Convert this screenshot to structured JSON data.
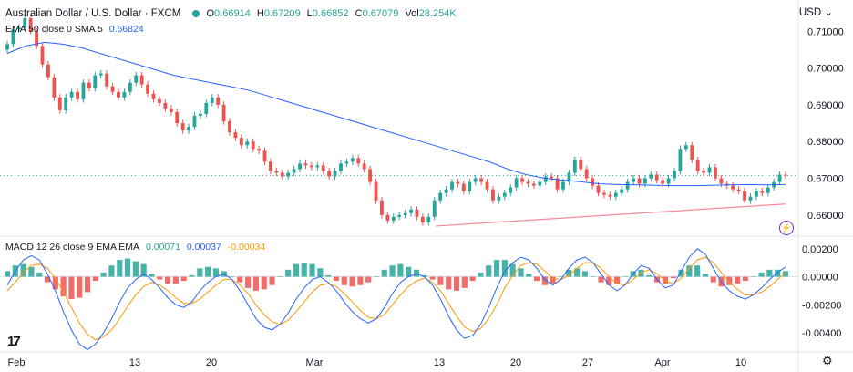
{
  "header": {
    "symbol_title": "Australian Dollar / U.S. Dollar · FXCM",
    "ohlc": [
      {
        "label": "O",
        "value": "0.66914"
      },
      {
        "label": "H",
        "value": "0.67209"
      },
      {
        "label": "L",
        "value": "0.66852"
      },
      {
        "label": "C",
        "value": "0.67079"
      },
      {
        "label": "Vol",
        "value": "28.254K"
      }
    ],
    "ema_label": "EMA 50 close 0 SMA 5",
    "ema_value": "0.66824",
    "currency": "USD",
    "macd_label": "MACD 12 26 close 9 EMA EMA",
    "macd_values": [
      "0.00071",
      "0.00037",
      "-0.00034"
    ]
  },
  "colors": {
    "up": "#26a69a",
    "down": "#ef5350",
    "ema": "#2962ff",
    "trendline": "#f28b9a",
    "macd_line": "#2962ff",
    "signal_line": "#ff9800",
    "hist_up": "#26a69a",
    "hist_down": "#ef5350"
  },
  "icons": {
    "logo": "tradingview-logo",
    "settings": "gear-icon",
    "flash": "lightning-icon"
  },
  "logo_text": "17",
  "chart_data": [
    {
      "type": "candlestick",
      "title": "Australian Dollar / U.S. Dollar · FXCM",
      "x_ticks": [
        "Feb",
        "13",
        "20",
        "Mar",
        "13",
        "20",
        "27",
        "Apr",
        "10"
      ],
      "y_ticks": [
        "0.71000",
        "0.70000",
        "0.69000",
        "0.68000",
        "0.67000",
        "0.66000"
      ],
      "ylim": [
        0.6545,
        0.7185
      ],
      "grid": false,
      "last_price": 0.67079,
      "series": [
        {
          "name": "AUDUSD close (approx.)",
          "values": [
            0.7065,
            0.7105,
            0.711,
            0.7135,
            0.71,
            0.706,
            0.701,
            0.6975,
            0.692,
            0.6885,
            0.692,
            0.6935,
            0.6915,
            0.696,
            0.6945,
            0.698,
            0.6985,
            0.695,
            0.6935,
            0.692,
            0.6935,
            0.696,
            0.698,
            0.6955,
            0.693,
            0.6915,
            0.6905,
            0.689,
            0.688,
            0.685,
            0.683,
            0.684,
            0.687,
            0.6875,
            0.6905,
            0.692,
            0.69,
            0.6855,
            0.6825,
            0.681,
            0.679,
            0.68,
            0.678,
            0.6775,
            0.6745,
            0.672,
            0.6715,
            0.6705,
            0.6715,
            0.6725,
            0.674,
            0.6735,
            0.673,
            0.6735,
            0.672,
            0.6705,
            0.672,
            0.674,
            0.6745,
            0.6755,
            0.674,
            0.6725,
            0.669,
            0.664,
            0.66,
            0.6585,
            0.6595,
            0.66,
            0.6605,
            0.6615,
            0.6595,
            0.658,
            0.6595,
            0.664,
            0.666,
            0.667,
            0.669,
            0.6685,
            0.6665,
            0.669,
            0.67,
            0.669,
            0.667,
            0.664,
            0.665,
            0.666,
            0.6675,
            0.67,
            0.669,
            0.6685,
            0.668,
            0.669,
            0.6705,
            0.67,
            0.667,
            0.669,
            0.6715,
            0.675,
            0.6725,
            0.67,
            0.668,
            0.666,
            0.6655,
            0.665,
            0.666,
            0.667,
            0.669,
            0.67,
            0.6685,
            0.67,
            0.671,
            0.6695,
            0.6685,
            0.67,
            0.672,
            0.678,
            0.679,
            0.675,
            0.672,
            0.6715,
            0.673,
            0.67,
            0.6685,
            0.668,
            0.667,
            0.6665,
            0.664,
            0.665,
            0.6665,
            0.666,
            0.6675,
            0.669,
            0.671,
            0.6708
          ]
        },
        {
          "name": "EMA 50 (approx.)",
          "values": [
            0.704,
            0.706,
            0.707,
            0.7065,
            0.7055,
            0.704,
            0.7025,
            0.701,
            0.6995,
            0.698,
            0.697,
            0.696,
            0.695,
            0.694,
            0.6925,
            0.691,
            0.6895,
            0.688,
            0.6865,
            0.685,
            0.6835,
            0.682,
            0.6805,
            0.679,
            0.6775,
            0.676,
            0.6745,
            0.6725,
            0.671,
            0.67,
            0.6695,
            0.669,
            0.6685,
            0.6683,
            0.6682,
            0.6681,
            0.668,
            0.668,
            0.6681,
            0.6682,
            0.6683,
            0.6682,
            0.6683
          ]
        },
        {
          "name": "Trendline",
          "values": [
            0.657,
            0.663
          ]
        }
      ]
    },
    {
      "type": "line",
      "title": "MACD 12 26 close 9 EMA EMA",
      "x_ticks": [
        "Feb",
        "13",
        "20",
        "Mar",
        "13",
        "20",
        "27",
        "Apr",
        "10"
      ],
      "y_ticks": [
        "0.00200",
        "0.00000",
        "-0.00200",
        "-0.00400"
      ],
      "ylim": [
        -0.0053,
        0.0027
      ],
      "series": [
        {
          "name": "MACD",
          "values": [
            -0.0006,
            0.0004,
            0.0012,
            0.0015,
            0.0012,
            0.0002,
            -0.001,
            -0.0025,
            -0.0038,
            -0.0048,
            -0.0052,
            -0.0048,
            -0.004,
            -0.003,
            -0.0018,
            -0.0008,
            -0.0002,
            0.0002,
            -0.0002,
            -0.0008,
            -0.0015,
            -0.002,
            -0.0022,
            -0.0018,
            -0.001,
            -0.0004,
            0.0,
            0.0002,
            -0.0002,
            -0.001,
            -0.002,
            -0.003,
            -0.0036,
            -0.0038,
            -0.0034,
            -0.0026,
            -0.0016,
            -0.0008,
            -0.0002,
            0.0,
            -0.0004,
            -0.001,
            -0.0018,
            -0.0025,
            -0.003,
            -0.0033,
            -0.003,
            -0.0022,
            -0.0012,
            -0.0004,
            0.0,
            0.0002,
            0.0,
            -0.0006,
            -0.0016,
            -0.0028,
            -0.0038,
            -0.0044,
            -0.0042,
            -0.0034,
            -0.0022,
            -0.0008,
            0.0004,
            0.001,
            0.0014,
            0.0012,
            0.0006,
            -0.0002,
            -0.0006,
            -0.0002,
            0.0006,
            0.0012,
            0.0014,
            0.001,
            0.0002,
            -0.0006,
            -0.001,
            -0.0006,
            0.0002,
            0.0008,
            0.0006,
            -0.0002,
            -0.0008,
            -0.0006,
            0.0004,
            0.0014,
            0.002,
            0.0016,
            0.0006,
            -0.0004,
            -0.001,
            -0.0014,
            -0.0016,
            -0.0013,
            -0.0008,
            -0.0002,
            0.0003,
            0.0007
          ]
        },
        {
          "name": "Signal",
          "values": [
            -0.001,
            -0.0004,
            0.0003,
            0.0008,
            0.0009,
            0.0006,
            -0.0001,
            -0.0011,
            -0.0022,
            -0.0033,
            -0.0041,
            -0.0045,
            -0.0043,
            -0.0038,
            -0.003,
            -0.0021,
            -0.0013,
            -0.0007,
            -0.0004,
            -0.0006,
            -0.001,
            -0.0015,
            -0.0019,
            -0.0019,
            -0.0016,
            -0.0011,
            -0.0006,
            -0.0002,
            -0.0002,
            -0.0006,
            -0.0012,
            -0.002,
            -0.0027,
            -0.0032,
            -0.0034,
            -0.0031,
            -0.0025,
            -0.0018,
            -0.0011,
            -0.0006,
            -0.0005,
            -0.0007,
            -0.0012,
            -0.0018,
            -0.0024,
            -0.0029,
            -0.003,
            -0.0027,
            -0.002,
            -0.0013,
            -0.0007,
            -0.0003,
            -0.0001,
            -0.0004,
            -0.001,
            -0.0019,
            -0.0028,
            -0.0036,
            -0.0039,
            -0.0037,
            -0.003,
            -0.002,
            -0.0008,
            0.0001,
            0.0008,
            0.001,
            0.0009,
            0.0004,
            -0.0001,
            -0.0002,
            0.0001,
            0.0006,
            0.001,
            0.001,
            0.0006,
            0.0,
            -0.0005,
            -0.0006,
            -0.0002,
            0.0003,
            0.0005,
            0.0002,
            -0.0003,
            -0.0005,
            -0.0001,
            0.0006,
            0.0012,
            0.0014,
            0.001,
            0.0003,
            -0.0004,
            -0.0009,
            -0.0013,
            -0.0013,
            -0.0011,
            -0.0007,
            -0.0002,
            0.0003
          ]
        },
        {
          "name": "Histogram",
          "values": [
            0.0004,
            0.0008,
            0.0009,
            0.0007,
            0.0003,
            -0.0004,
            -0.0009,
            -0.0014,
            -0.0016,
            -0.0015,
            -0.0011,
            -0.0003,
            0.0003,
            0.0008,
            0.0012,
            0.0013,
            0.0011,
            0.0009,
            0.0002,
            -0.0002,
            -0.0005,
            -0.0005,
            -0.0003,
            0.0001,
            0.0006,
            0.0007,
            0.0006,
            0.0004,
            0.0,
            -0.0004,
            -0.0008,
            -0.001,
            -0.0009,
            -0.0006,
            0.0,
            0.0005,
            0.0009,
            0.001,
            0.0009,
            0.0006,
            0.0001,
            -0.0003,
            -0.0006,
            -0.0007,
            -0.0006,
            -0.0004,
            0.0,
            0.0005,
            0.0008,
            0.0009,
            0.0007,
            0.0005,
            0.0001,
            -0.0002,
            -0.0006,
            -0.0009,
            -0.001,
            -0.0008,
            -0.0003,
            0.0003,
            0.0008,
            0.0012,
            0.0012,
            0.0009,
            0.0006,
            0.0002,
            -0.0003,
            -0.0006,
            -0.0005,
            0.0,
            0.0005,
            0.0006,
            0.0004,
            0.0,
            -0.0004,
            -0.0006,
            -0.0005,
            0.0,
            0.0004,
            0.0005,
            0.0001,
            -0.0004,
            -0.0005,
            -0.0001,
            0.0005,
            0.0008,
            0.0008,
            0.0002,
            -0.0004,
            -0.0007,
            -0.0006,
            -0.0005,
            -0.0003,
            0.0,
            0.0003,
            0.0005,
            0.0005,
            0.0004
          ]
        }
      ]
    }
  ]
}
